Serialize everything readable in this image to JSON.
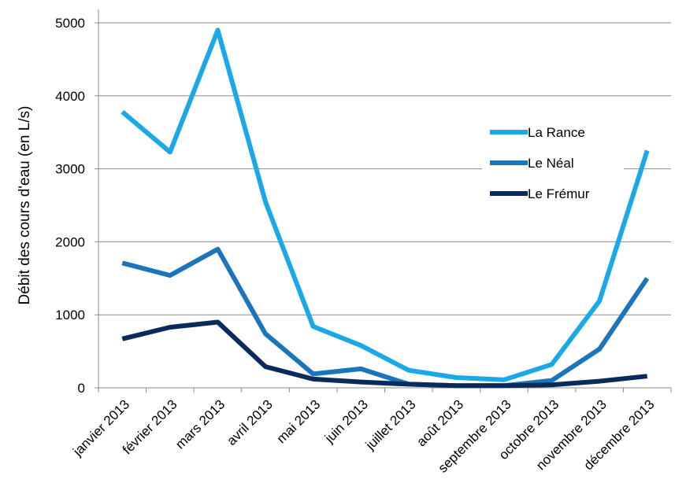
{
  "chart_data": {
    "type": "line",
    "title": "",
    "xlabel": "",
    "ylabel": "Débit des cours d'eau (en L/s)",
    "categories": [
      "janvier 2013",
      "février 2013",
      "mars 2013",
      "avril 2013",
      "mai 2013",
      "juin 2013",
      "juillet 2013",
      "août 2013",
      "septembre 2013",
      "octobre 2013",
      "novembre 2013",
      "décembre 2013"
    ],
    "ylim": [
      0,
      5000
    ],
    "yticks": [
      "0",
      "1000",
      "2000",
      "3000",
      "4000",
      "5000"
    ],
    "grid": true,
    "legend_position": "right",
    "series": [
      {
        "name": "La Rance",
        "color": "#1aa9e6",
        "values": [
          3780,
          3230,
          4900,
          2550,
          840,
          580,
          240,
          140,
          110,
          320,
          1190,
          3250
        ]
      },
      {
        "name": "Le Néal",
        "color": "#1b75bb",
        "values": [
          1710,
          1540,
          1900,
          740,
          190,
          260,
          50,
          30,
          30,
          100,
          530,
          1500
        ]
      },
      {
        "name": "Le Frémur",
        "color": "#0b2a5c",
        "values": [
          670,
          830,
          900,
          290,
          120,
          80,
          50,
          30,
          30,
          40,
          90,
          160
        ]
      }
    ]
  }
}
